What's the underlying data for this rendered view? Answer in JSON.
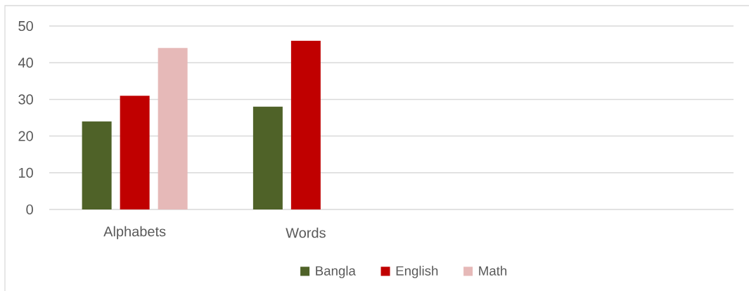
{
  "chart_data": {
    "type": "bar",
    "categories": [
      "Alphabets",
      "Words",
      null,
      null
    ],
    "series": [
      {
        "name": "Bangla",
        "color": "#4f6228",
        "values": [
          24,
          28,
          null,
          null
        ]
      },
      {
        "name": "English",
        "color": "#c00000",
        "values": [
          31,
          46,
          null,
          null
        ]
      },
      {
        "name": "Math",
        "color": "#e6b9b8",
        "values": [
          44,
          null,
          null,
          null
        ]
      }
    ],
    "ylim": [
      0,
      50
    ],
    "yticks": [
      0,
      10,
      20,
      30,
      40,
      50
    ],
    "grid": "y",
    "legend": "bottom"
  }
}
